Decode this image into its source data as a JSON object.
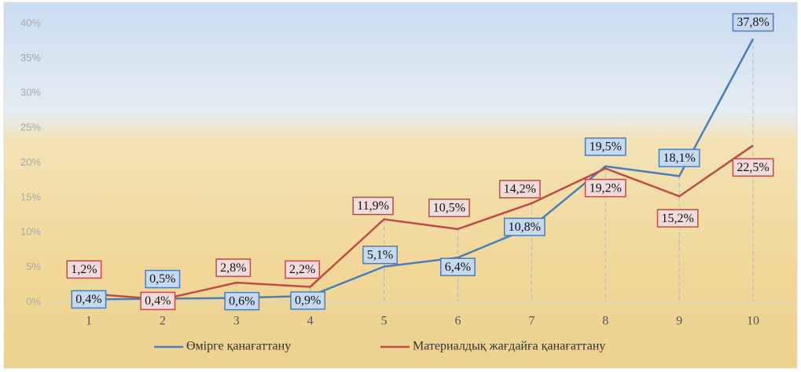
{
  "chart_data": {
    "type": "line",
    "categories": [
      "1",
      "2",
      "3",
      "4",
      "5",
      "6",
      "7",
      "8",
      "9",
      "10"
    ],
    "series": [
      {
        "name": "Өмірге қанағаттану",
        "color": "#4a7ebb",
        "values": [
          0.4,
          0.5,
          0.6,
          0.9,
          5.1,
          6.4,
          10.8,
          19.5,
          18.1,
          37.8
        ],
        "value_labels": [
          "0,4%",
          "0,5%",
          "0,6%",
          "0,9%",
          "5,1%",
          "6,4%",
          "10,8%",
          "19,5%",
          "18,1%",
          "37,8%"
        ]
      },
      {
        "name": "Материалдық жағдайға қанағаттану",
        "color": "#be4b48",
        "values": [
          1.2,
          0.4,
          2.8,
          2.2,
          11.9,
          10.5,
          14.2,
          19.2,
          15.2,
          22.5
        ],
        "value_labels": [
          "1,2%",
          "0,4%",
          "2,8%",
          "2,2%",
          "11,9%",
          "10,5%",
          "14,2%",
          "19,2%",
          "15,2%",
          "22,5%"
        ]
      }
    ],
    "ylim": [
      0,
      40
    ],
    "yticks": [
      {
        "value": 0,
        "label": "0%"
      },
      {
        "value": 5,
        "label": "5%"
      },
      {
        "value": 10,
        "label": "10%"
      },
      {
        "value": 15,
        "label": "15%"
      },
      {
        "value": 20,
        "label": "20%"
      },
      {
        "value": 25,
        "label": "25%"
      },
      {
        "value": 30,
        "label": "30%"
      },
      {
        "value": 35,
        "label": "35%"
      },
      {
        "value": 40,
        "label": "40%"
      }
    ],
    "legend": "bottom"
  }
}
